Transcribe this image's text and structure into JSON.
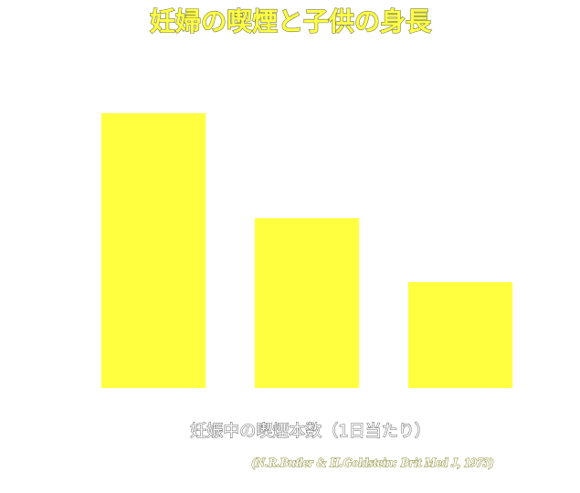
{
  "chart_data": {
    "type": "bar",
    "title": "妊婦の喫煙と子供の身長",
    "x_label": "妊娠中の喫煙本数（1日当たり）",
    "source": "(N.R.Butler & H.Goldstein: Brit Med J, 1973)",
    "categories": [
      null,
      null,
      null
    ],
    "values": [
      301,
      186,
      116
    ],
    "color": "#ffff40"
  }
}
